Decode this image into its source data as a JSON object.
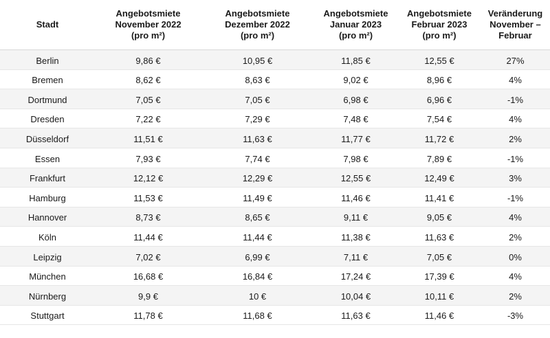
{
  "table": {
    "headers": [
      [
        "Stadt"
      ],
      [
        "Angebotsmiete",
        "November 2022",
        "(pro m²)"
      ],
      [
        "Angebotsmiete",
        "Dezember 2022",
        "(pro m²)"
      ],
      [
        "Angebotsmiete",
        "Januar 2023",
        "(pro m²)"
      ],
      [
        "Angebotsmiete",
        "Februar 2023",
        "(pro m²)"
      ],
      [
        "Veränderung",
        "November –",
        "Februar"
      ]
    ],
    "rows": [
      [
        "Berlin",
        "9,86 €",
        "10,95 €",
        "11,85 €",
        "12,55 €",
        "27%"
      ],
      [
        "Bremen",
        "8,62 €",
        "8,63 €",
        "9,02 €",
        "8,96 €",
        "4%"
      ],
      [
        "Dortmund",
        "7,05 €",
        "7,05 €",
        "6,98 €",
        "6,96 €",
        "-1%"
      ],
      [
        "Dresden",
        "7,22 €",
        "7,29 €",
        "7,48 €",
        "7,54 €",
        "4%"
      ],
      [
        "Düsseldorf",
        "11,51 €",
        "11,63 €",
        "11,77 €",
        "11,72 €",
        "2%"
      ],
      [
        "Essen",
        "7,93 €",
        "7,74 €",
        "7,98 €",
        "7,89 €",
        "-1%"
      ],
      [
        "Frankfurt",
        "12,12 €",
        "12,29 €",
        "12,55 €",
        "12,49 €",
        "3%"
      ],
      [
        "Hamburg",
        "11,53 €",
        "11,49 €",
        "11,46 €",
        "11,41 €",
        "-1%"
      ],
      [
        "Hannover",
        "8,73 €",
        "8,65 €",
        "9,11 €",
        "9,05 €",
        "4%"
      ],
      [
        "Köln",
        "11,44 €",
        "11,44 €",
        "11,38 €",
        "11,63 €",
        "2%"
      ],
      [
        "Leipzig",
        "7,02 €",
        "6,99 €",
        "7,11 €",
        "7,05 €",
        "0%"
      ],
      [
        "München",
        "16,68 €",
        "16,84 €",
        "17,24 €",
        "17,39 €",
        "4%"
      ],
      [
        "Nürnberg",
        "9,9 €",
        "10 €",
        "10,04 €",
        "10,11 €",
        "2%"
      ],
      [
        "Stuttgart",
        "11,78 €",
        "11,68 €",
        "11,63 €",
        "11,46 €",
        "-3%"
      ]
    ]
  }
}
